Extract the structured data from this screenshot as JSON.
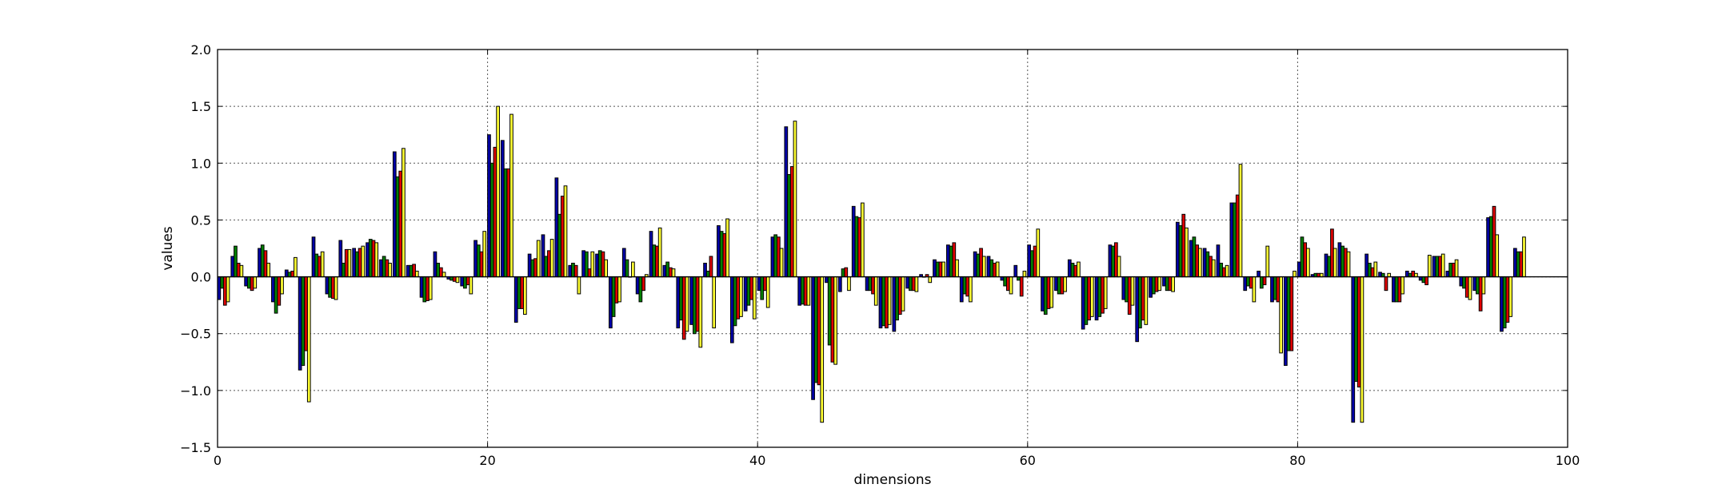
{
  "chart_data": {
    "type": "bar",
    "title": "",
    "xlabel": "dimensions",
    "ylabel": "values",
    "xlim": [
      0,
      100
    ],
    "ylim": [
      -1.5,
      2.0
    ],
    "xticks": [
      0,
      20,
      40,
      60,
      80,
      100
    ],
    "xtick_labels": [
      "0",
      "20",
      "40",
      "60",
      "80",
      "100"
    ],
    "yticks": [
      -1.5,
      -1.0,
      -0.5,
      0.0,
      0.5,
      1.0,
      1.5,
      2.0
    ],
    "ytick_labels": [
      "−1.5",
      "−1.0",
      "−0.5",
      "0.0",
      "0.5",
      "1.0",
      "1.5",
      "2.0"
    ],
    "grid": true,
    "legend": "none",
    "colors": [
      "#0000a8",
      "#008000",
      "#e00000",
      "#ffff33"
    ],
    "series": [
      {
        "values": [
          -0.2,
          0.18,
          -0.08,
          0.25,
          -0.22,
          0.06,
          -0.82,
          0.35,
          -0.15,
          0.32,
          0.25,
          0.3,
          0.15,
          1.1,
          0.1,
          -0.18,
          0.22,
          -0.02,
          -0.08,
          0.32,
          1.25,
          1.2,
          -0.4,
          0.2,
          0.37,
          0.87,
          0.1,
          0.23,
          0.2,
          -0.45,
          0.25,
          -0.15,
          0.4,
          0.1,
          -0.45,
          -0.42,
          0.12,
          0.45,
          -0.58,
          -0.3,
          -0.12,
          0.35,
          1.32,
          -0.25,
          -1.08,
          -0.05,
          -0.13,
          0.62,
          -0.12,
          -0.45,
          -0.48,
          -0.1,
          0.02,
          0.15,
          0.28,
          -0.22,
          0.22,
          0.18,
          -0.03,
          0.1,
          0.28,
          -0.3,
          -0.12,
          0.15,
          -0.46,
          -0.38,
          0.28,
          -0.2,
          -0.57,
          -0.18,
          -0.08,
          0.48,
          0.32,
          0.25,
          0.28,
          0.65,
          -0.12,
          0.05,
          -0.22,
          -0.78,
          0.13,
          0.02,
          0.2,
          0.3,
          -1.28,
          0.2,
          0.04,
          -0.22,
          0.05,
          -0.03,
          0.18,
          0.05,
          -0.08,
          -0.12,
          0.52,
          -0.48,
          0.25
        ]
      },
      {
        "values": [
          -0.1,
          0.27,
          -0.1,
          0.28,
          -0.32,
          0.04,
          -0.78,
          0.2,
          -0.18,
          0.12,
          0.22,
          0.33,
          0.18,
          0.88,
          0.1,
          -0.22,
          0.12,
          -0.03,
          -0.1,
          0.28,
          1.0,
          0.95,
          -0.28,
          0.15,
          0.18,
          0.55,
          0.12,
          0.22,
          0.23,
          -0.35,
          0.15,
          -0.22,
          0.28,
          0.13,
          -0.38,
          -0.5,
          0.05,
          0.4,
          -0.43,
          -0.25,
          -0.2,
          0.37,
          0.9,
          -0.24,
          -0.93,
          -0.6,
          0.07,
          0.53,
          -0.12,
          -0.43,
          -0.38,
          -0.12,
          0.0,
          0.13,
          0.27,
          -0.15,
          0.2,
          0.15,
          -0.08,
          -0.03,
          0.23,
          -0.33,
          -0.15,
          0.12,
          -0.42,
          -0.35,
          0.27,
          -0.22,
          -0.45,
          -0.15,
          -0.12,
          0.45,
          0.35,
          0.22,
          0.12,
          0.65,
          -0.08,
          -0.1,
          -0.2,
          -0.65,
          0.35,
          0.03,
          0.18,
          0.27,
          -0.92,
          0.12,
          0.03,
          -0.22,
          0.03,
          -0.05,
          0.18,
          0.12,
          -0.1,
          -0.15,
          0.53,
          -0.45,
          0.22
        ]
      },
      {
        "values": [
          -0.25,
          0.12,
          -0.12,
          0.23,
          -0.25,
          0.05,
          -0.65,
          0.18,
          -0.19,
          0.24,
          0.25,
          0.32,
          0.15,
          0.93,
          0.11,
          -0.21,
          0.08,
          -0.04,
          -0.07,
          0.22,
          1.14,
          0.95,
          -0.28,
          0.16,
          0.23,
          0.71,
          0.1,
          0.07,
          0.22,
          -0.23,
          0.0,
          -0.12,
          0.27,
          0.08,
          -0.55,
          -0.48,
          0.18,
          0.38,
          -0.37,
          -0.2,
          -0.12,
          0.35,
          0.97,
          -0.25,
          -0.95,
          -0.75,
          0.08,
          0.52,
          -0.15,
          -0.45,
          -0.33,
          -0.12,
          0.02,
          0.13,
          0.3,
          -0.17,
          0.25,
          0.12,
          -0.12,
          -0.17,
          0.27,
          -0.28,
          -0.15,
          0.1,
          -0.38,
          -0.32,
          0.3,
          -0.33,
          -0.38,
          -0.13,
          -0.12,
          0.55,
          0.28,
          0.18,
          0.08,
          0.72,
          -0.1,
          -0.07,
          -0.22,
          -0.65,
          0.3,
          0.03,
          0.42,
          0.25,
          -0.97,
          0.08,
          -0.12,
          -0.22,
          0.05,
          -0.07,
          0.18,
          0.12,
          -0.18,
          -0.3,
          0.62,
          -0.4,
          0.22
        ]
      },
      {
        "values": [
          -0.22,
          0.1,
          -0.1,
          0.12,
          -0.15,
          0.17,
          -1.1,
          0.22,
          -0.2,
          0.24,
          0.27,
          0.3,
          0.12,
          1.13,
          0.05,
          -0.2,
          0.04,
          -0.05,
          -0.15,
          0.4,
          1.5,
          1.43,
          -0.33,
          0.32,
          0.33,
          0.8,
          -0.15,
          0.22,
          0.15,
          -0.22,
          0.13,
          0.02,
          0.43,
          0.07,
          -0.48,
          -0.62,
          -0.45,
          0.51,
          -0.35,
          -0.37,
          -0.27,
          0.25,
          1.37,
          -0.25,
          -1.28,
          -0.77,
          -0.12,
          0.65,
          -0.25,
          -0.42,
          -0.3,
          -0.13,
          -0.05,
          0.13,
          0.15,
          -0.22,
          0.18,
          0.13,
          -0.15,
          0.05,
          0.42,
          -0.27,
          -0.13,
          0.13,
          -0.35,
          -0.28,
          0.18,
          -0.25,
          -0.42,
          -0.12,
          -0.13,
          0.43,
          0.25,
          0.15,
          0.1,
          0.99,
          -0.22,
          0.27,
          -0.67,
          0.05,
          0.25,
          0.03,
          0.25,
          0.22,
          -1.28,
          0.13,
          0.03,
          -0.15,
          0.03,
          0.19,
          0.2,
          0.15,
          -0.2,
          -0.15,
          0.37,
          -0.35,
          0.35
        ]
      }
    ]
  }
}
